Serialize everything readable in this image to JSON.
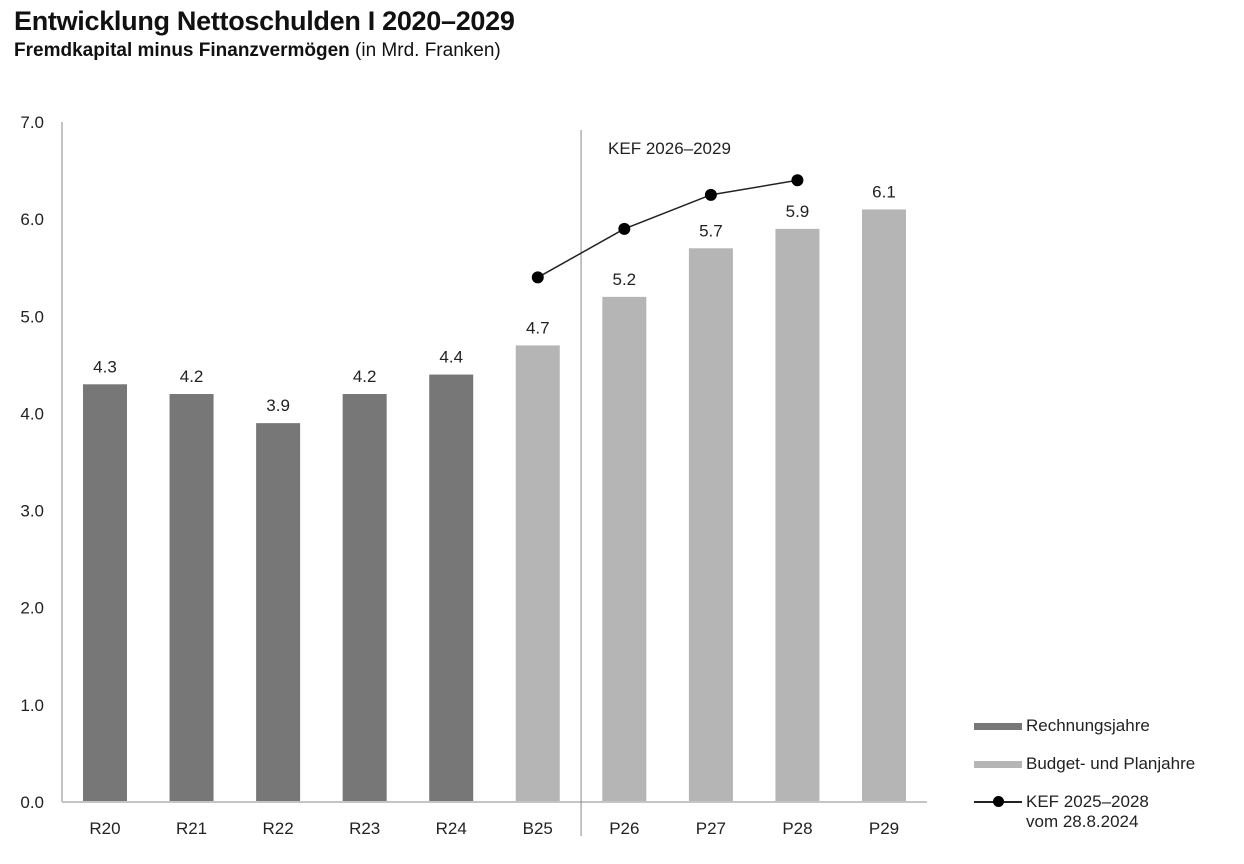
{
  "header": {
    "title": "Entwicklung Nettoschulden I 2020–2029",
    "subtitle_bold": "Fremdkapital minus Finanzvermögen",
    "subtitle_regular": "(in Mrd. Franken)"
  },
  "chart_data": {
    "type": "bar",
    "title": "Entwicklung Nettoschulden I 2020–2029",
    "subtitle": "Fremdkapital minus Finanzvermögen (in Mrd. Franken)",
    "xlabel": "",
    "ylabel": "",
    "ylim": [
      0,
      7
    ],
    "yticks": [
      "0.0",
      "1.0",
      "2.0",
      "3.0",
      "4.0",
      "5.0",
      "6.0",
      "7.0"
    ],
    "categories": [
      "R20",
      "R21",
      "R22",
      "R23",
      "R24",
      "B25",
      "P26",
      "P27",
      "P28",
      "P29"
    ],
    "values": [
      4.3,
      4.2,
      3.9,
      4.2,
      4.4,
      4.7,
      5.2,
      5.7,
      5.9,
      6.1
    ],
    "value_labels": [
      "4.3",
      "4.2",
      "3.9",
      "4.2",
      "4.4",
      "4.7",
      "5.2",
      "5.7",
      "5.9",
      "6.1"
    ],
    "bar_types": [
      "Rechnungsjahre",
      "Rechnungsjahre",
      "Rechnungsjahre",
      "Rechnungsjahre",
      "Rechnungsjahre",
      "Budget- und Planjahre",
      "Budget- und Planjahre",
      "Budget- und Planjahre",
      "Budget- und Planjahre",
      "Budget- und Planjahre"
    ],
    "line_series": {
      "name": "KEF 2025–2028 vom 28.8.2024",
      "categories": [
        "B25",
        "P26",
        "P27",
        "P28"
      ],
      "values": [
        5.4,
        5.9,
        6.25,
        6.4
      ]
    },
    "annotation": "KEF 2026–2029",
    "annotation_divider_after": "B25",
    "legend": {
      "position": "bottom-right",
      "items": [
        {
          "label": "Rechnungsjahre",
          "type": "bar",
          "color": "#777777"
        },
        {
          "label": "Budget- und Planjahre",
          "type": "bar",
          "color": "#b5b5b5"
        },
        {
          "label_line1": "KEF 2025–2028",
          "label_line2": "vom 28.8.2024",
          "type": "line",
          "color": "#000000"
        }
      ]
    },
    "colors": {
      "actual": "#777777",
      "plan": "#b5b5b5",
      "line": "#222222",
      "marker": "#000000",
      "axis": "#c4c4c4",
      "divider": "#888888"
    },
    "grid": false
  }
}
